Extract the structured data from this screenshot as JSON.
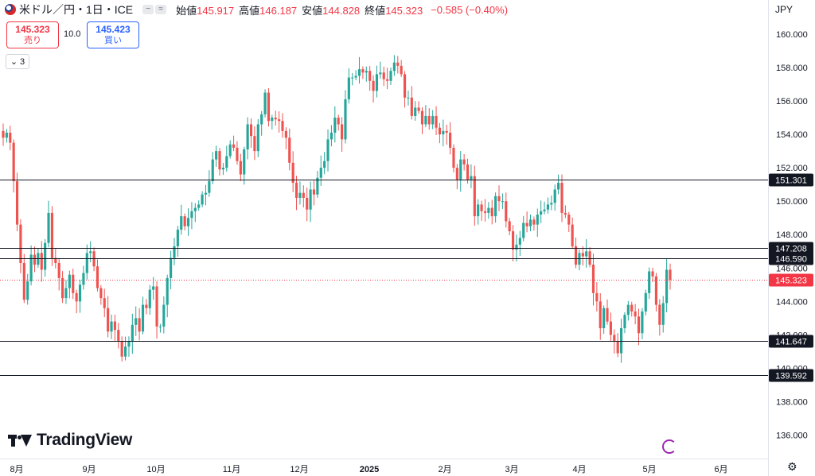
{
  "header": {
    "symbol": "米ドル／円・1日・ICE",
    "open_label": "始値",
    "open": "145.917",
    "high_label": "高値",
    "high": "146.187",
    "low_label": "安値",
    "low": "144.828",
    "close_label": "終値",
    "close": "145.323",
    "change": "−0.585 (−0.40%)",
    "currency": "JPY"
  },
  "trade": {
    "sell_price": "145.323",
    "sell_label": "売り",
    "spread": "10.0",
    "buy_price": "145.423",
    "buy_label": "買い"
  },
  "indicators_collapse": "3",
  "brand": "TradingView",
  "colors": {
    "up": "#26a69a",
    "down": "#ef5350",
    "line": "#131722",
    "price": "#f23645"
  },
  "chart_data": {
    "type": "candlestick",
    "y_ticks": [
      "136.000",
      "138.000",
      "140.000",
      "142.000",
      "144.000",
      "146.000",
      "148.000",
      "150.000",
      "152.000",
      "154.000",
      "156.000",
      "158.000",
      "160.000"
    ],
    "x_ticks": [
      "8月",
      "9月",
      "10月",
      "11月",
      "12月",
      "2025",
      "2月",
      "3月",
      "4月",
      "5月",
      "6月"
    ],
    "ylim": [
      134.6,
      160.9
    ],
    "hlines": [
      {
        "value": 151.301,
        "label": "151.301"
      },
      {
        "value": 147.208,
        "label": "147.208"
      },
      {
        "value": 146.59,
        "label": "146.590"
      },
      {
        "value": 141.647,
        "label": "141.647"
      },
      {
        "value": 139.592,
        "label": "139.592"
      }
    ],
    "last_price": {
      "value": 145.323,
      "label": "145.323"
    },
    "closes": [
      153.8,
      154.1,
      153.5,
      151.2,
      148.6,
      146.3,
      144.1,
      145.2,
      146.8,
      146.2,
      146.9,
      145.9,
      147.5,
      149.3,
      146.6,
      146.3,
      145.4,
      144.2,
      144.8,
      145.6,
      144.5,
      144.0,
      145.0,
      145.7,
      146.9,
      147.0,
      146.1,
      144.8,
      144.2,
      143.6,
      142.2,
      142.8,
      142.3,
      141.6,
      140.7,
      141.3,
      141.6,
      142.6,
      143.0,
      142.2,
      143.8,
      143.6,
      144.7,
      144.9,
      142.5,
      142.5,
      143.8,
      145.4,
      146.6,
      147.3,
      148.3,
      149.1,
      148.5,
      149.0,
      149.4,
      149.6,
      149.8,
      150.4,
      150.5,
      151.2,
      152.5,
      153.0,
      151.9,
      152.0,
      152.7,
      153.4,
      153.2,
      152.4,
      151.6,
      153.1,
      154.6,
      153.9,
      153.0,
      154.6,
      155.2,
      156.5,
      154.8,
      155.0,
      154.9,
      154.8,
      154.2,
      153.8,
      152.3,
      151.1,
      150.2,
      150.5,
      150.2,
      149.5,
      150.7,
      150.4,
      151.4,
      152.0,
      152.4,
      153.7,
      154.1,
      155.0,
      154.6,
      153.7,
      156.1,
      157.4,
      157.4,
      157.5,
      157.9,
      157.7,
      157.8,
      157.2,
      156.6,
      157.6,
      157.7,
      157.3,
      157.2,
      157.8,
      158.3,
      158.1,
      157.6,
      156.2,
      156.2,
      155.1,
      155.6,
      155.4,
      154.6,
      155.1,
      154.6,
      155.1,
      154.4,
      154.0,
      154.2,
      154.1,
      153.2,
      152.0,
      151.3,
      152.5,
      152.2,
      151.3,
      151.5,
      149.1,
      149.8,
      149.4,
      149.3,
      149.6,
      149.1,
      150.3,
      150.0,
      150.0,
      148.8,
      148.2,
      147.1,
      147.4,
      147.8,
      148.7,
      148.5,
      148.9,
      148.6,
      149.2,
      149.4,
      149.5,
      149.8,
      149.9,
      150.7,
      151.1,
      149.3,
      149.2,
      148.6,
      147.3,
      146.2,
      146.9,
      146.7,
      147.0,
      146.2,
      144.5,
      144.0,
      142.4,
      143.6,
      142.8,
      142.0,
      141.6,
      140.9,
      142.4,
      143.2,
      143.8,
      143.4,
      143.1,
      142.1,
      143.4,
      144.5,
      145.8,
      145.5,
      143.8,
      142.6,
      143.9,
      145.9,
      145.3
    ]
  }
}
